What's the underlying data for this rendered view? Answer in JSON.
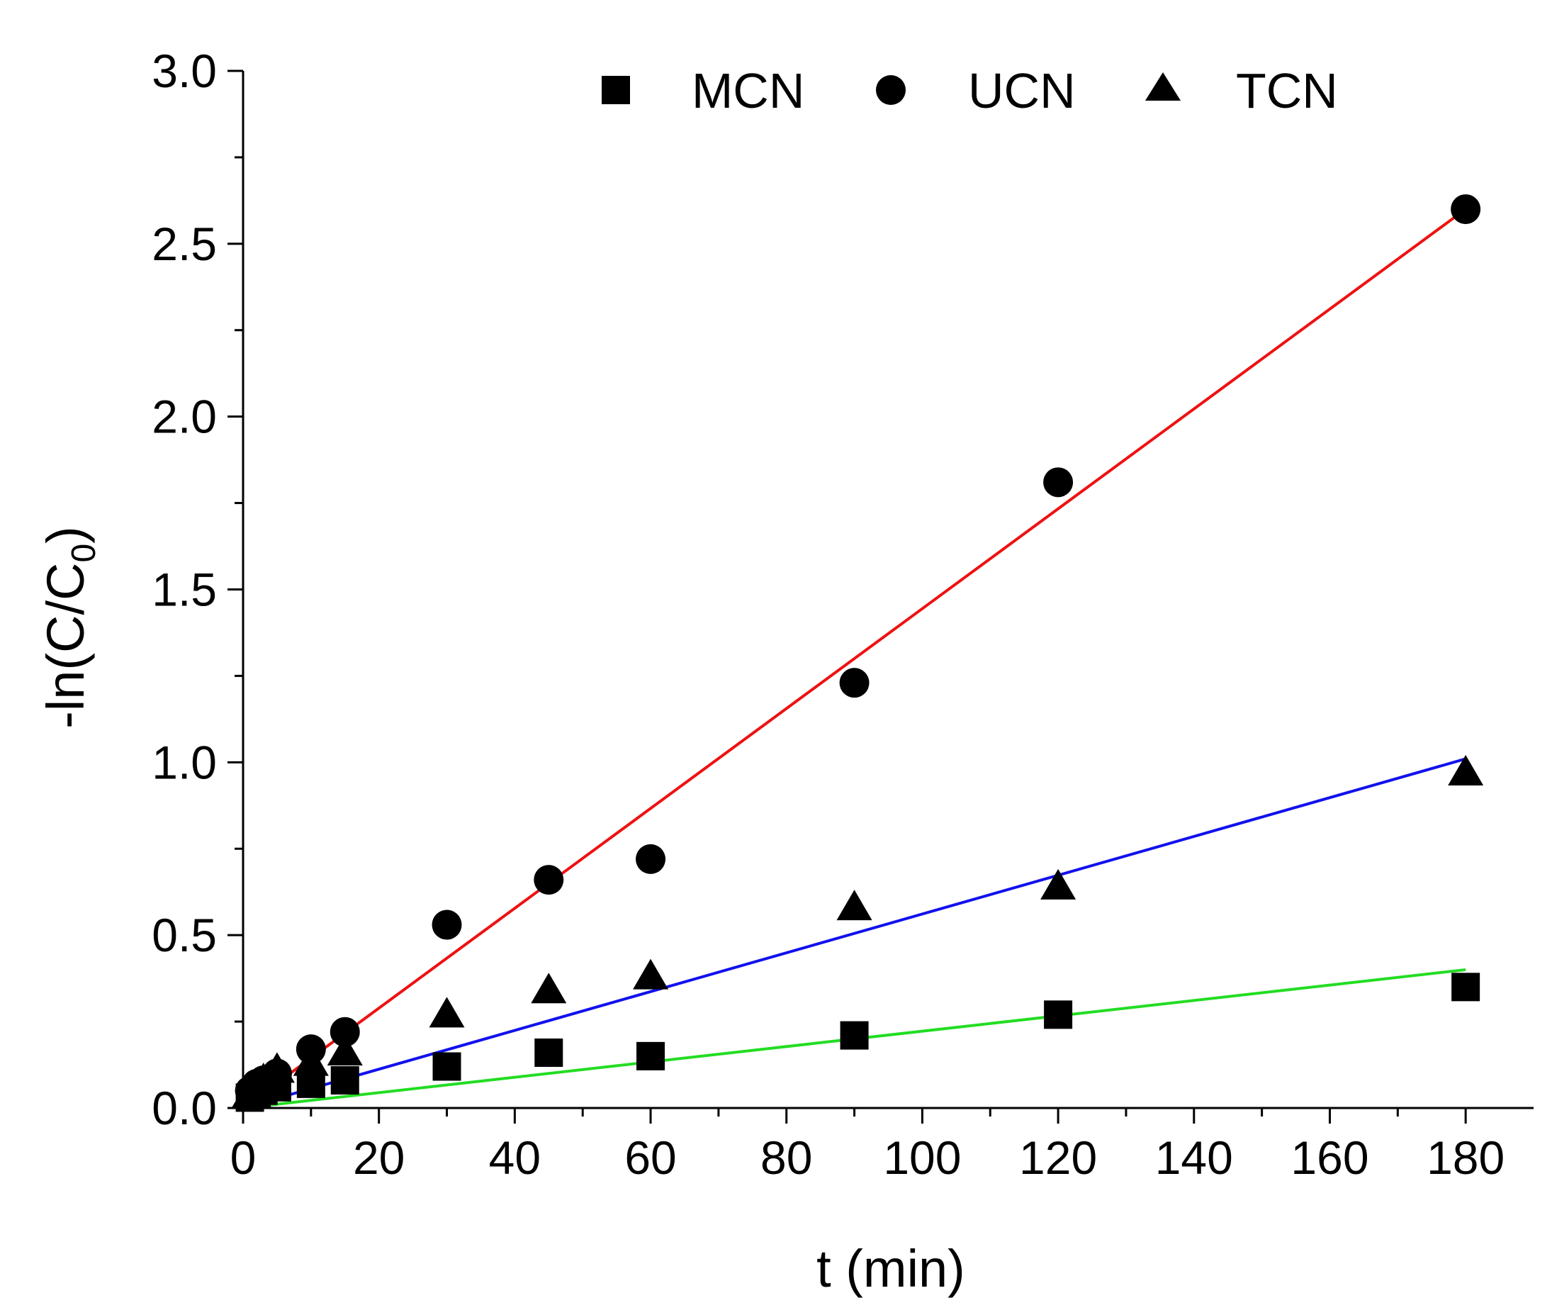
{
  "chart_data": {
    "type": "scatter",
    "title": "",
    "xlabel": "t (min)",
    "ylabel_main": "-ln(C/C",
    "ylabel_sub": "0",
    "ylabel_close": ")",
    "xlim": [
      0,
      190
    ],
    "ylim": [
      0,
      3.0
    ],
    "xticks": [
      0,
      20,
      40,
      60,
      80,
      100,
      120,
      140,
      160,
      180
    ],
    "xtick_labels": [
      "0",
      "20",
      "40",
      "60",
      "80",
      "100",
      "120",
      "140",
      "160",
      "180"
    ],
    "yticks": [
      0,
      0.5,
      1.0,
      1.5,
      2.0,
      2.5,
      3.0
    ],
    "ytick_labels": [
      "0.0",
      "0.5",
      "1.0",
      "1.5",
      "2.0",
      "2.5",
      "3.0"
    ],
    "x": [
      1,
      2,
      3,
      5,
      10,
      15,
      30,
      45,
      60,
      90,
      120,
      180
    ],
    "legend_position": "top",
    "series": [
      {
        "name": "MCN",
        "marker": "square",
        "values": [
          0.03,
          0.04,
          0.05,
          0.06,
          0.07,
          0.08,
          0.12,
          0.16,
          0.15,
          0.21,
          0.27,
          0.35
        ],
        "fit": {
          "x": [
            0,
            180
          ],
          "y": [
            0,
            0.4
          ],
          "color": "#22dd22"
        }
      },
      {
        "name": "UCN",
        "marker": "circle",
        "values": [
          0.05,
          0.07,
          0.08,
          0.1,
          0.17,
          0.22,
          0.53,
          0.66,
          0.72,
          1.23,
          1.81,
          2.6
        ],
        "fit": {
          "x": [
            0,
            180
          ],
          "y": [
            0,
            2.6
          ],
          "color": "#ee1111"
        }
      },
      {
        "name": "TCN",
        "marker": "triangle",
        "values": [
          0.04,
          0.06,
          0.08,
          0.11,
          0.13,
          0.16,
          0.27,
          0.34,
          0.38,
          0.58,
          0.64,
          0.97
        ],
        "fit": {
          "x": [
            0,
            180
          ],
          "y": [
            0,
            1.01
          ],
          "color": "#1111ee"
        }
      }
    ]
  }
}
